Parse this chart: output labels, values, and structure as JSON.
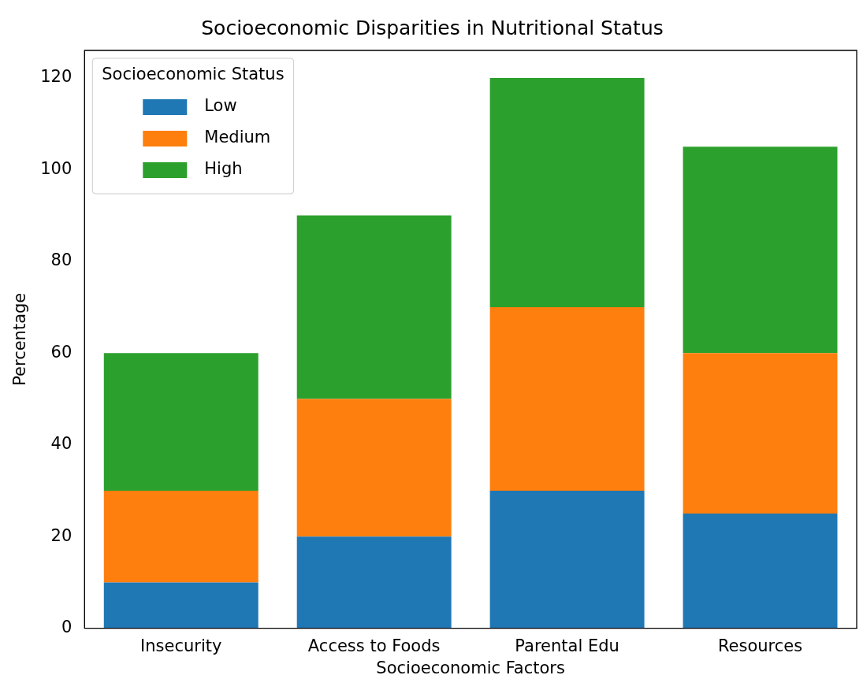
{
  "chart_data": {
    "type": "bar",
    "title": "Socioeconomic Disparities in Nutritional Status",
    "xlabel": "Socioeconomic Factors",
    "ylabel": "Percentage",
    "legend_title": "Socioeconomic Status",
    "categories": [
      "Insecurity",
      "Access to Foods",
      "Parental Edu",
      "Resources"
    ],
    "series": [
      {
        "name": "Low",
        "color": "#1f77b4",
        "values": [
          10,
          20,
          30,
          25
        ]
      },
      {
        "name": "Medium",
        "color": "#ff7f0e",
        "values": [
          20,
          30,
          40,
          35
        ]
      },
      {
        "name": "High",
        "color": "#2ca02c",
        "values": [
          30,
          40,
          50,
          45
        ]
      }
    ],
    "stacked": true,
    "ylim": [
      0,
      126
    ],
    "yticks": [
      0,
      20,
      40,
      60,
      80,
      100,
      120
    ],
    "grid": false,
    "legend": "top left"
  }
}
